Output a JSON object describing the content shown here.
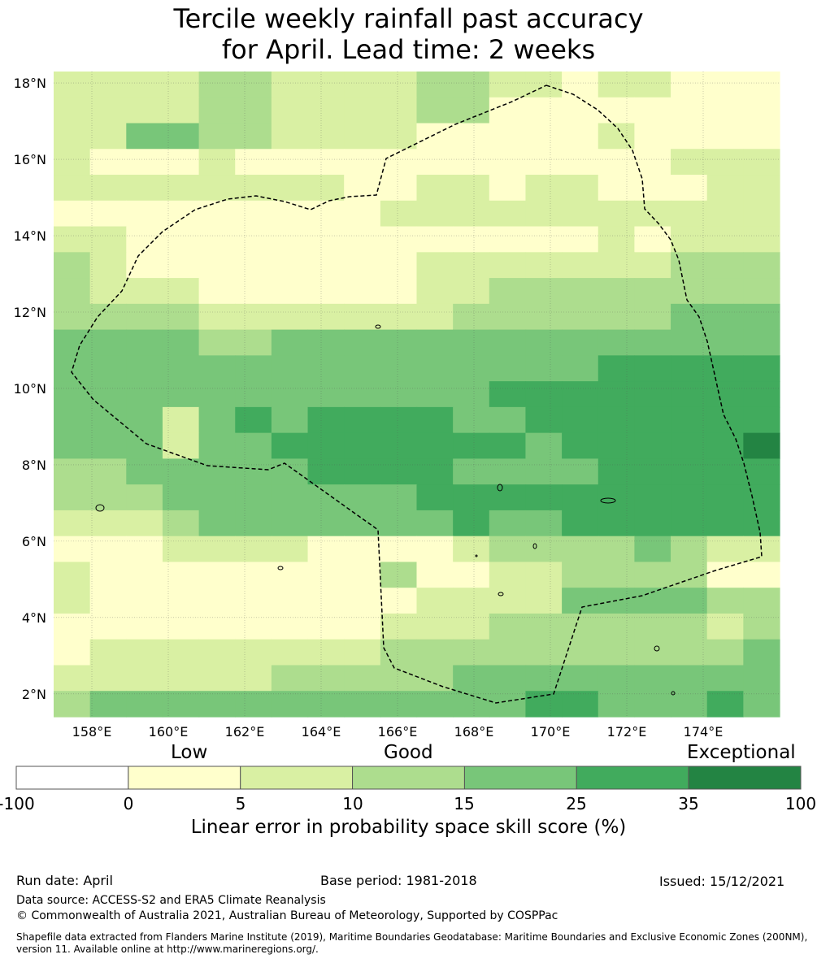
{
  "title": {
    "line1": "Tercile weekly rainfall past accuracy",
    "line2": "for April. Lead time: 2 weeks"
  },
  "map": {
    "lat_labels": [
      "18°N",
      "16°N",
      "14°N",
      "12°N",
      "10°N",
      "8°N",
      "6°N",
      "4°N",
      "2°N"
    ],
    "lon_labels": [
      "158°E",
      "160°E",
      "162°E",
      "164°E",
      "166°E",
      "168°E",
      "170°E",
      "172°E",
      "174°E"
    ],
    "lat_values": [
      18,
      16,
      14,
      12,
      10,
      8,
      6,
      4,
      2
    ],
    "lon_values": [
      158,
      160,
      162,
      164,
      166,
      168,
      170,
      172,
      174
    ],
    "extent": {
      "lon_min": 157,
      "lon_max": 176,
      "lat_min": 1.4,
      "lat_max": 18.3
    },
    "cell_size_deg": 0.83,
    "grid": [
      "22223322223322122111",
      "22223322223311111111",
      "22443322221111121111",
      "21112111111111111222",
      "22222222112212211122",
      "11111111122222222222",
      "22111111111111121222",
      "32111111112222222333",
      "32221111112233333333",
      "33332222222333333444",
      "44443344444444444444",
      "44444444444444455555",
      "44444444444455555555",
      "44424545555445555555",
      "44424455555554555556",
      "33444445555444455555",
      "33344444445555555555",
      "22234444444544555555",
      "11122221111233334322",
      "21111111131122333311",
      "21111111112222444433",
      "11111111122233333323",
      "12222222233333333334",
      "22222233333444444444",
      "34444444444445544454"
    ],
    "boundary_style": "dashed black line"
  },
  "colorbar": {
    "category_labels": [
      "Low",
      "Good",
      "Exceptional"
    ],
    "ticks": [
      "-100",
      "0",
      "5",
      "10",
      "15",
      "25",
      "35",
      "100"
    ],
    "colors": [
      "#ffffff",
      "#ffffcc",
      "#d9f0a3",
      "#addd8e",
      "#78c679",
      "#41ab5d",
      "#238443"
    ],
    "label": "Linear error in probability space skill score (%)"
  },
  "footer": {
    "run_date": "Run date: April",
    "base_period": "Base period: 1981-2018",
    "issued": "Issued: 15/12/2021",
    "data_source": "Data source: ACCESS-S2 and ERA5 Climate Reanalysis",
    "copyright": "© Commonwealth of Australia 2021, Australian Bureau of Meteorology, Supported by COSPPac",
    "shapefile": "Shapefile data extracted from Flanders Marine Institute (2019), Maritime Boundaries Geodatabase: Maritime Boundaries and Exclusive Economic Zones (200NM), version 11. Available online at http://www.marineregions.org/."
  }
}
